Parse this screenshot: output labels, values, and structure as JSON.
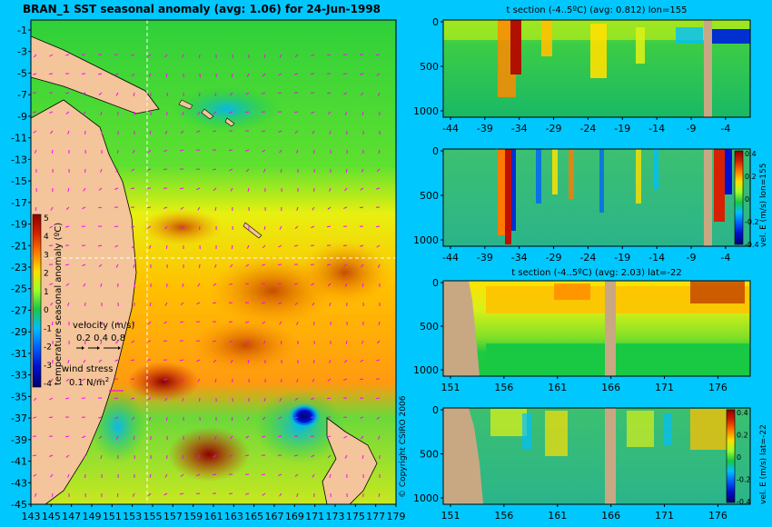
{
  "main_map": {
    "title": "BRAN_1 SST seasonal anomaly (avg: 1.06) for 24-Jun-1998",
    "y_ticks": [
      "-1",
      "-3",
      "-5",
      "-7",
      "-9",
      "-11",
      "-13",
      "-15",
      "-17",
      "-19",
      "-21",
      "-23",
      "-25",
      "-27",
      "-29",
      "-31",
      "-33",
      "-35",
      "-37",
      "-39",
      "-41",
      "-43",
      "-45"
    ],
    "x_ticks": [
      "143",
      "145",
      "147",
      "149",
      "151",
      "153",
      "155",
      "157",
      "159",
      "161",
      "163",
      "165",
      "167",
      "169",
      "171",
      "173",
      "175",
      "177",
      "179"
    ],
    "colorbar": {
      "label": "temperature seasonal anomaly (ºC)",
      "ticks": [
        "5",
        "4",
        "3",
        "2",
        "1",
        "0",
        "-1",
        "-2",
        "-3",
        "-4"
      ],
      "colors": [
        "#8b0000",
        "#d62000",
        "#ff7a00",
        "#ffe000",
        "#9cff2a",
        "#19c843",
        "#00bfff",
        "#0060ff",
        "#0010d0",
        "#00006e"
      ]
    },
    "velocity_legend": {
      "label": "velocity (m/s)",
      "values": "0.2 0.4 0.8"
    },
    "wind_legend": {
      "label": "wind stress",
      "value": "0.1 N/m",
      "superscript": "2"
    },
    "copyright": "© Copyright CSIRO 2006"
  },
  "panels": [
    {
      "title": "t section (-4..5ºC) (avg: 0.812) lon=155",
      "y_ticks": [
        "0",
        "500",
        "1000"
      ],
      "x_ticks": [
        "-44",
        "-39",
        "-34",
        "-29",
        "-24",
        "-19",
        "-14",
        "-9",
        "-4"
      ]
    },
    {
      "title": "",
      "y_ticks": [
        "0",
        "500",
        "1000"
      ],
      "x_ticks": [
        "-44",
        "-39",
        "-34",
        "-29",
        "-24",
        "-19",
        "-14",
        "-9",
        "-4"
      ],
      "colorbar_label": "vel. E (m/s) lon=155",
      "colorbar_ticks": [
        "0.4",
        "0.2",
        "0",
        "-0.2",
        "-0.4"
      ]
    },
    {
      "title": "t section (-4..5ºC) (avg: 2.03) lat=-22",
      "y_ticks": [
        "0",
        "500",
        "1000"
      ],
      "x_ticks": [
        "151",
        "156",
        "161",
        "166",
        "171",
        "176"
      ]
    },
    {
      "title": "",
      "y_ticks": [
        "0",
        "500",
        "1000"
      ],
      "x_ticks": [
        "151",
        "156",
        "161",
        "166",
        "171",
        "176"
      ],
      "colorbar_label": "vel. E (m/s) lat=-22",
      "colorbar_ticks": [
        "0.4",
        "0.2",
        "0",
        "-0.2",
        "-0.4"
      ]
    }
  ],
  "colors": {
    "background": "#00c8ff",
    "land": "#f4c49a",
    "section_land": "#c8a882",
    "arrows": "#ff00ff",
    "guides": "#ffffff"
  }
}
